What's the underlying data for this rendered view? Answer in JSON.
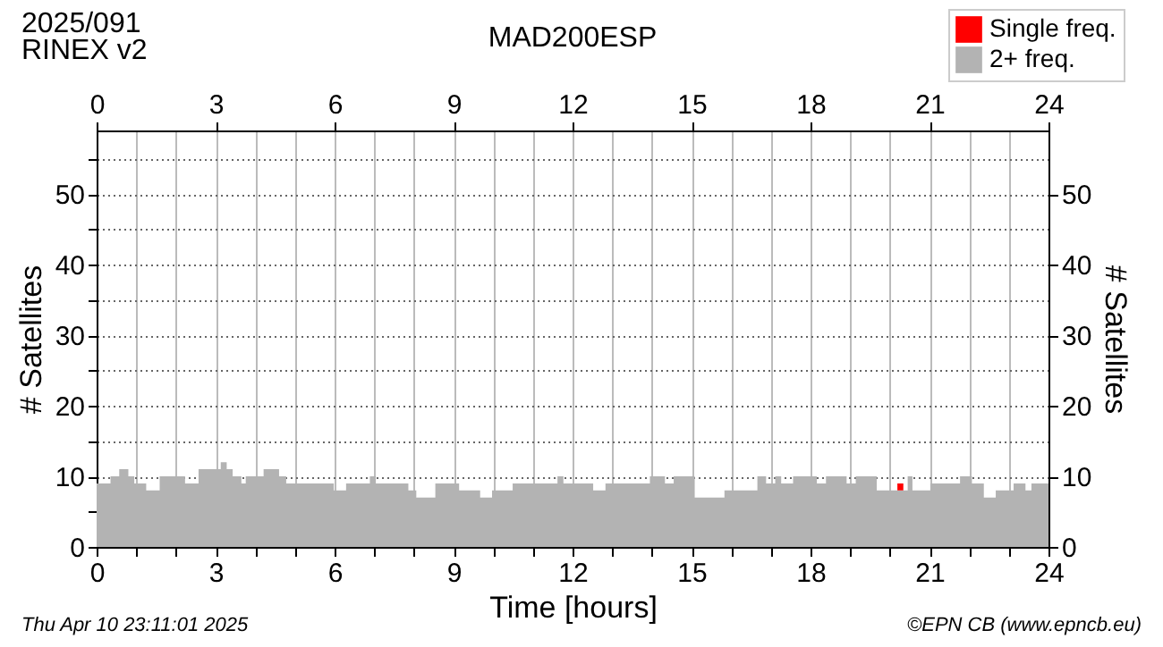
{
  "chart_data": {
    "type": "area",
    "title": "MAD200ESP",
    "xlabel": "Time [hours]",
    "ylabel": "# Satellites",
    "y2label": "# Satellites",
    "annotations": [
      "2025/091",
      "RINEX v2",
      "Thu Apr 10 23:11:01 2025",
      "©EPN CB (www.epncb.eu)"
    ],
    "x": [
      0,
      0.35,
      0.57,
      0.8,
      0.95,
      1.25,
      1.59,
      2.23,
      2.57,
      3.13,
      3.28,
      3.43,
      3.65,
      3.76,
      4.21,
      4.6,
      4.78,
      5.98,
      6.29,
      6.89,
      7.04,
      7.86,
      8.06,
      8.54,
      9.14,
      9.67,
      9.97,
      10.49,
      11.62,
      11.77,
      12.52,
      12.83,
      13.95,
      14.33,
      14.55,
      15.08,
      15.83,
      16.66,
      16.88,
      17.11,
      17.26,
      17.56,
      18.16,
      18.39,
      18.91,
      19.14,
      19.67,
      20.19,
      20.34,
      20.45,
      20.57,
      21.02,
      21.77,
      22.07,
      22.37,
      22.67,
      23.12,
      23.42,
      23.57,
      24
    ],
    "series": [
      {
        "name": "2+ freq.",
        "color": "#b3b3b3",
        "values": [
          9,
          10,
          11,
          10,
          9,
          8,
          10,
          9,
          11,
          12,
          11,
          10,
          9,
          10,
          11,
          10,
          9,
          8,
          9,
          10,
          9,
          8,
          7,
          9,
          8,
          7,
          8,
          9,
          10,
          9,
          8,
          9,
          10,
          9,
          10,
          7,
          8,
          10,
          9,
          10,
          9,
          10,
          9,
          10,
          9,
          10,
          8,
          8,
          8,
          10,
          8,
          9,
          10,
          9,
          7,
          8,
          9,
          8,
          9,
          9
        ]
      },
      {
        "name": "Single freq.",
        "color": "#ff0000",
        "values": [
          0,
          0,
          0,
          0,
          0,
          0,
          0,
          0,
          0,
          0,
          0,
          0,
          0,
          0,
          0,
          0,
          0,
          0,
          0,
          0,
          0,
          0,
          0,
          0,
          0,
          0,
          0,
          0,
          0,
          0,
          0,
          0,
          0,
          0,
          0,
          0,
          0,
          0,
          0,
          0,
          0,
          0,
          0,
          0,
          0,
          0,
          0,
          1,
          0,
          0,
          0,
          0,
          0,
          0,
          0,
          0,
          0,
          0,
          0,
          0
        ]
      }
    ],
    "stacked": true,
    "xlim": [
      0,
      24
    ],
    "xticks": [
      0,
      {
        "value": 1,
        "label": null
      },
      {
        "value": 2,
        "label": null
      },
      3,
      {
        "value": 4,
        "label": null
      },
      {
        "value": 5,
        "label": null
      },
      6,
      {
        "value": 7,
        "label": null
      },
      {
        "value": 8,
        "label": null
      },
      9,
      {
        "value": 10,
        "label": null
      },
      {
        "value": 11,
        "label": null
      },
      12,
      {
        "value": 13,
        "label": null
      },
      {
        "value": 14,
        "label": null
      },
      15,
      {
        "value": 16,
        "label": null
      },
      {
        "value": 17,
        "label": null
      },
      18,
      {
        "value": 19,
        "label": null
      },
      {
        "value": 20,
        "label": null
      },
      21,
      {
        "value": 22,
        "label": null
      },
      {
        "value": 23,
        "label": null
      },
      24
    ],
    "x2lim": [
      0,
      24
    ],
    "x2ticks": [
      0,
      3,
      6,
      9,
      12,
      15,
      18,
      21,
      24
    ],
    "ylim": [
      0,
      59
    ],
    "yticks": [
      0,
      {
        "value": 5,
        "label": null
      },
      10,
      {
        "value": 15,
        "label": null
      },
      20,
      {
        "value": 25,
        "label": null
      },
      30,
      {
        "value": 35,
        "label": null
      },
      40,
      {
        "value": 45,
        "label": null
      },
      50,
      {
        "value": 55,
        "label": null
      }
    ],
    "y2lim": [
      0,
      59
    ],
    "y2ticks": [
      0,
      10,
      20,
      30,
      40,
      50
    ],
    "grid": true,
    "legend": "top right"
  }
}
